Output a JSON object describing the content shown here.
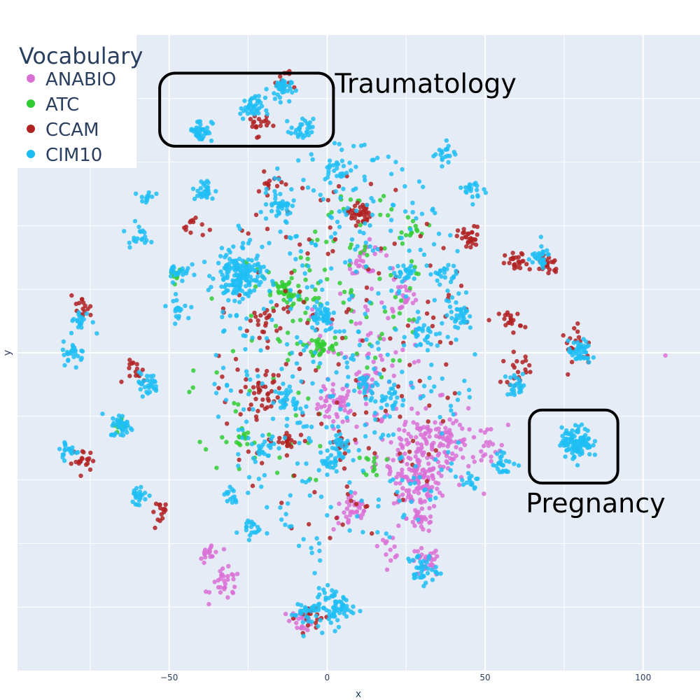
{
  "chart_data": {
    "type": "scatter",
    "title": "",
    "xlabel": "x",
    "ylabel": "y",
    "xlim": [
      -98,
      118
    ],
    "ylim": [
      -100,
      100
    ],
    "xticks": [
      -50,
      0,
      50,
      100
    ],
    "xtick_labels": [
      "−50",
      "0",
      "50",
      "100"
    ],
    "grid": true,
    "plot_bg": "#E5ECF6",
    "legend": {
      "title": "Vocabulary",
      "placement": "top-left"
    },
    "series": [
      {
        "name": "ANABIO",
        "color": "#DA70D6",
        "clusters": [
          {
            "cx": 3,
            "cy": -16,
            "r": 5,
            "n": 40
          },
          {
            "cx": 13,
            "cy": -9,
            "r": 3,
            "n": 20
          },
          {
            "cx": 28,
            "cy": -42,
            "r": 6,
            "n": 70
          },
          {
            "cx": 30,
            "cy": -30,
            "r": 12,
            "n": 150
          },
          {
            "cx": 38,
            "cy": -28,
            "r": 5,
            "n": 40
          },
          {
            "cx": 8,
            "cy": -50,
            "r": 5,
            "n": 35
          },
          {
            "cx": 30,
            "cy": -52,
            "r": 4,
            "n": 30
          },
          {
            "cx": 31,
            "cy": -66,
            "r": 4,
            "n": 30
          },
          {
            "cx": -32,
            "cy": -73,
            "r": 4,
            "n": 30
          },
          {
            "cx": -37,
            "cy": -63,
            "r": 3,
            "n": 18
          },
          {
            "cx": -8,
            "cy": -84,
            "r": 3,
            "n": 20
          },
          {
            "cx": 12,
            "cy": 30,
            "r": 4,
            "n": 20
          },
          {
            "cx": 24,
            "cy": 17,
            "r": 4,
            "n": 15
          },
          {
            "cx": 20,
            "cy": -61,
            "r": 3,
            "n": 12
          },
          {
            "cx": 12,
            "cy": 5,
            "r": 18,
            "n": 80
          },
          {
            "cx": 50,
            "cy": -30,
            "r": 6,
            "n": 20
          },
          {
            "cx": 107,
            "cy": -1,
            "r": 0.3,
            "n": 1
          }
        ]
      },
      {
        "name": "ATC",
        "color": "#32CD32",
        "clusters": [
          {
            "cx": -13,
            "cy": 19,
            "r": 4,
            "n": 40
          },
          {
            "cx": -2,
            "cy": 2,
            "r": 3,
            "n": 25
          },
          {
            "cx": -48,
            "cy": 25,
            "r": 2,
            "n": 12
          },
          {
            "cx": -65,
            "cy": -23,
            "r": 2,
            "n": 15
          },
          {
            "cx": -28,
            "cy": -27,
            "r": 3,
            "n": 15
          },
          {
            "cx": 28,
            "cy": 40,
            "r": 3,
            "n": 12
          },
          {
            "cx": 15,
            "cy": -35,
            "r": 3,
            "n": 12
          },
          {
            "cx": 10,
            "cy": 20,
            "r": 20,
            "n": 90
          },
          {
            "cx": -20,
            "cy": -10,
            "r": 25,
            "n": 60
          }
        ]
      },
      {
        "name": "CCAM",
        "color": "#B22222",
        "clusters": [
          {
            "cx": 10,
            "cy": 44,
            "r": 3,
            "n": 40
          },
          {
            "cx": 45,
            "cy": 36,
            "r": 3,
            "n": 30
          },
          {
            "cx": 60,
            "cy": 28,
            "r": 3,
            "n": 25
          },
          {
            "cx": 70,
            "cy": 28,
            "r": 3,
            "n": 25
          },
          {
            "cx": -20,
            "cy": 10,
            "r": 4,
            "n": 20
          },
          {
            "cx": -20,
            "cy": -12,
            "r": 5,
            "n": 35
          },
          {
            "cx": -13,
            "cy": -28,
            "r": 3,
            "n": 20
          },
          {
            "cx": 5,
            "cy": -28,
            "r": 3,
            "n": 15
          },
          {
            "cx": -78,
            "cy": 14,
            "r": 3,
            "n": 15
          },
          {
            "cx": -77,
            "cy": -34,
            "r": 3,
            "n": 20
          },
          {
            "cx": -52,
            "cy": -50,
            "r": 3,
            "n": 15
          },
          {
            "cx": -60,
            "cy": -6,
            "r": 3,
            "n": 15
          },
          {
            "cx": 58,
            "cy": 10,
            "r": 3,
            "n": 20
          },
          {
            "cx": 60,
            "cy": -5,
            "r": 4,
            "n": 20
          },
          {
            "cx": 80,
            "cy": 2,
            "r": 5,
            "n": 20
          },
          {
            "cx": -5,
            "cy": -83,
            "r": 4,
            "n": 20
          },
          {
            "cx": -22,
            "cy": 72,
            "r": 3,
            "n": 20
          },
          {
            "cx": -14,
            "cy": 86,
            "r": 3,
            "n": 12
          },
          {
            "cx": -18,
            "cy": 53,
            "r": 3,
            "n": 12
          },
          {
            "cx": -42,
            "cy": 40,
            "r": 3,
            "n": 12
          },
          {
            "cx": 5,
            "cy": 0,
            "r": 40,
            "n": 150
          }
        ]
      },
      {
        "name": "CIM10",
        "color": "#1EBEF5",
        "clusters": [
          {
            "cx": -28,
            "cy": 24,
            "r": 6,
            "n": 150
          },
          {
            "cx": -40,
            "cy": 70,
            "r": 3,
            "n": 40
          },
          {
            "cx": -15,
            "cy": 83,
            "r": 3,
            "n": 35
          },
          {
            "cx": -24,
            "cy": 77,
            "r": 3,
            "n": 40
          },
          {
            "cx": -8,
            "cy": 70,
            "r": 3,
            "n": 30
          },
          {
            "cx": -39,
            "cy": 51,
            "r": 3,
            "n": 30
          },
          {
            "cx": -15,
            "cy": 47,
            "r": 3,
            "n": 30
          },
          {
            "cx": 3,
            "cy": 57,
            "r": 3,
            "n": 20
          },
          {
            "cx": 37,
            "cy": 63,
            "r": 3,
            "n": 20
          },
          {
            "cx": 47,
            "cy": 51,
            "r": 3,
            "n": 20
          },
          {
            "cx": -2,
            "cy": 12,
            "r": 4,
            "n": 45
          },
          {
            "cx": -80,
            "cy": 0,
            "r": 3,
            "n": 25
          },
          {
            "cx": -78,
            "cy": 10,
            "r": 3,
            "n": 20
          },
          {
            "cx": -65,
            "cy": -23,
            "r": 3,
            "n": 35
          },
          {
            "cx": -82,
            "cy": -31,
            "r": 3,
            "n": 20
          },
          {
            "cx": -47,
            "cy": 26,
            "r": 3,
            "n": 25
          },
          {
            "cx": -47,
            "cy": 14,
            "r": 3,
            "n": 20
          },
          {
            "cx": -57,
            "cy": -10,
            "r": 3,
            "n": 30
          },
          {
            "cx": -60,
            "cy": -45,
            "r": 3,
            "n": 25
          },
          {
            "cx": -20,
            "cy": -30,
            "r": 3,
            "n": 20
          },
          {
            "cx": 3,
            "cy": -29,
            "r": 3,
            "n": 25
          },
          {
            "cx": -12,
            "cy": -15,
            "r": 3,
            "n": 25
          },
          {
            "cx": 12,
            "cy": -10,
            "r": 3,
            "n": 20
          },
          {
            "cx": 20,
            "cy": -15,
            "r": 4,
            "n": 25
          },
          {
            "cx": 30,
            "cy": -68,
            "r": 4,
            "n": 40
          },
          {
            "cx": 2,
            "cy": -80,
            "r": 5,
            "n": 70
          },
          {
            "cx": -7,
            "cy": -82,
            "r": 4,
            "n": 30
          },
          {
            "cx": -25,
            "cy": -55,
            "r": 3,
            "n": 20
          },
          {
            "cx": -30,
            "cy": -45,
            "r": 3,
            "n": 15
          },
          {
            "cx": 42,
            "cy": 12,
            "r": 3,
            "n": 30
          },
          {
            "cx": 67,
            "cy": 30,
            "r": 3,
            "n": 30
          },
          {
            "cx": 80,
            "cy": 0,
            "r": 3,
            "n": 45
          },
          {
            "cx": 79,
            "cy": -28,
            "r": 4,
            "n": 120
          },
          {
            "cx": 56,
            "cy": -35,
            "r": 3,
            "n": 25
          },
          {
            "cx": 60,
            "cy": -10,
            "r": 3,
            "n": 25
          },
          {
            "cx": 25,
            "cy": 25,
            "r": 3,
            "n": 20
          },
          {
            "cx": 37,
            "cy": 25,
            "r": 3,
            "n": 20
          },
          {
            "cx": -60,
            "cy": 37,
            "r": 3,
            "n": 20
          },
          {
            "cx": -57,
            "cy": 49,
            "r": 2,
            "n": 12
          },
          {
            "cx": 30,
            "cy": 6,
            "r": 3,
            "n": 20
          },
          {
            "cx": 0,
            "cy": -35,
            "r": 3,
            "n": 20
          },
          {
            "cx": 45,
            "cy": -40,
            "r": 3,
            "n": 15
          },
          {
            "cx": 5,
            "cy": 0,
            "r": 42,
            "n": 420
          }
        ]
      }
    ],
    "annotations": [
      {
        "text": "Traumatology",
        "box": {
          "x0": -53,
          "x1": 2,
          "y0": 65,
          "y1": 88
        }
      },
      {
        "text": "Pregnancy",
        "box": {
          "x0": 64,
          "x1": 92,
          "y0": -41,
          "y1": -18
        }
      }
    ]
  }
}
